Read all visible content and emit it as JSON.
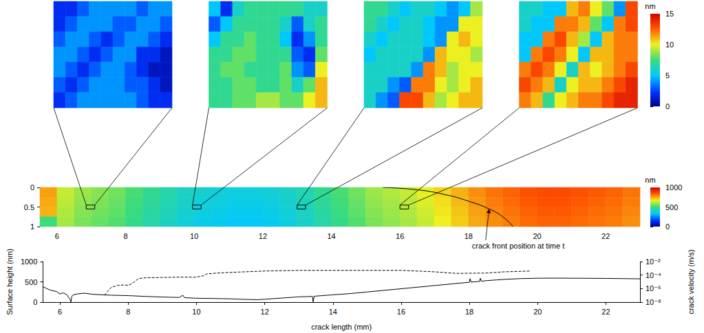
{
  "chart_data": [
    {
      "type": "heatmap",
      "tick_labels": false,
      "colorbar": {
        "label": "nm",
        "range": [
          0,
          15
        ],
        "ticks": [
          0,
          5,
          10,
          15
        ]
      },
      "insets": [
        {
          "xlim": [
            6.85,
            7.1
          ],
          "ylim": [
            0.45,
            0.55
          ],
          "cells": [
            [
              2,
              2,
              3,
              4,
              4,
              4,
              4,
              3,
              4,
              4
            ],
            [
              2,
              3,
              4,
              4,
              4,
              3,
              3,
              4,
              4,
              3
            ],
            [
              3,
              4,
              4,
              3,
              2,
              3,
              4,
              4,
              3,
              2
            ],
            [
              4,
              4,
              3,
              2,
              3,
              4,
              4,
              2,
              2,
              1
            ],
            [
              4,
              3,
              2,
              3,
              4,
              4,
              3,
              2,
              1,
              1
            ],
            [
              3,
              2,
              3,
              4,
              4,
              4,
              3,
              3,
              2,
              1
            ],
            [
              2,
              3,
              4,
              4,
              4,
              4,
              4,
              3,
              2,
              2
            ]
          ]
        },
        {
          "xlim": [
            9.95,
            10.2
          ],
          "ylim": [
            0.45,
            0.55
          ],
          "cells": [
            [
              5,
              2,
              6,
              7,
              7,
              7,
              7,
              7,
              6,
              6
            ],
            [
              3,
              5,
              7,
              7,
              7,
              7,
              6,
              3,
              6,
              7
            ],
            [
              5,
              7,
              7,
              8,
              7,
              7,
              5,
              2,
              4,
              7
            ],
            [
              7,
              7,
              8,
              8,
              7,
              7,
              7,
              3,
              2,
              8
            ],
            [
              7,
              8,
              8,
              7,
              7,
              7,
              8,
              4,
              3,
              10
            ],
            [
              7,
              7,
              8,
              8,
              7,
              7,
              8,
              6,
              8,
              11
            ],
            [
              7,
              7,
              8,
              8,
              9,
              9,
              8,
              8,
              10,
              11
            ]
          ]
        },
        {
          "xlim": [
            13.0,
            13.25
          ],
          "ylim": [
            0.45,
            0.55
          ],
          "cells": [
            [
              7,
              7,
              6,
              5,
              6,
              6,
              5,
              4,
              5,
              9
            ],
            [
              7,
              6,
              5,
              6,
              6,
              5,
              4,
              4,
              10,
              10
            ],
            [
              6,
              5,
              6,
              6,
              6,
              5,
              4,
              10,
              11,
              10
            ],
            [
              5,
              6,
              6,
              6,
              6,
              4,
              11,
              10,
              10,
              9
            ],
            [
              6,
              6,
              6,
              6,
              4,
              12,
              11,
              9,
              10,
              10
            ],
            [
              6,
              6,
              4,
              3,
              12,
              12,
              10,
              9,
              10,
              11
            ],
            [
              6,
              4,
              3,
              13,
              13,
              11,
              9,
              10,
              11,
              11
            ]
          ]
        },
        {
          "xlim": [
            16.0,
            16.25
          ],
          "ylim": [
            0.45,
            0.55
          ],
          "cells": [
            [
              6,
              6,
              5,
              5,
              11,
              12,
              10,
              8,
              4,
              13
            ],
            [
              6,
              5,
              5,
              12,
              12,
              11,
              8,
              5,
              12,
              13
            ],
            [
              5,
              5,
              12,
              13,
              11,
              9,
              5,
              11,
              12,
              12
            ],
            [
              5,
              12,
              13,
              12,
              10,
              5,
              11,
              11,
              12,
              12
            ],
            [
              12,
              13,
              12,
              10,
              6,
              11,
              10,
              11,
              12,
              13
            ],
            [
              13,
              12,
              11,
              6,
              10,
              11,
              11,
              12,
              13,
              14
            ],
            [
              12,
              11,
              7,
              10,
              11,
              12,
              12,
              13,
              14,
              14
            ]
          ]
        }
      ]
    },
    {
      "type": "heatmap",
      "grid": false,
      "xlim": [
        5.5,
        23
      ],
      "ylim": [
        0,
        1
      ],
      "xticks": [
        6,
        8,
        10,
        12,
        14,
        16,
        18,
        20,
        22
      ],
      "yticks": [
        0,
        0.5,
        1
      ],
      "colorbar": {
        "label": "nm",
        "range": [
          0,
          1000
        ],
        "ticks": [
          0,
          500,
          1000
        ]
      },
      "cells": [
        [
          760,
          630,
          590,
          570,
          550,
          510,
          470,
          440,
          410,
          390,
          380,
          370,
          370,
          380,
          400,
          430,
          470,
          510,
          550,
          590,
          610,
          630,
          660,
          700,
          740,
          780,
          810,
          830,
          850,
          860,
          860,
          850,
          840,
          830,
          810
        ],
        [
          750,
          620,
          580,
          560,
          540,
          500,
          460,
          430,
          400,
          380,
          370,
          360,
          360,
          370,
          390,
          420,
          460,
          500,
          540,
          580,
          600,
          620,
          650,
          690,
          730,
          770,
          800,
          820,
          840,
          850,
          850,
          840,
          830,
          820,
          800
        ],
        [
          740,
          610,
          570,
          550,
          530,
          490,
          450,
          420,
          390,
          370,
          360,
          350,
          350,
          360,
          380,
          410,
          450,
          490,
          530,
          570,
          590,
          610,
          640,
          680,
          720,
          760,
          790,
          810,
          830,
          840,
          840,
          830,
          820,
          810,
          790
        ],
        [
          500,
          600,
          560,
          540,
          520,
          480,
          440,
          410,
          380,
          360,
          350,
          340,
          340,
          350,
          370,
          400,
          440,
          480,
          520,
          560,
          580,
          600,
          630,
          670,
          710,
          750,
          780,
          800,
          820,
          830,
          830,
          820,
          810,
          800,
          780
        ]
      ],
      "crack_front": {
        "x": [
          15.5,
          16.5,
          17.3,
          18.0,
          18.6,
          19.0,
          19.3
        ],
        "y": [
          0,
          0.06,
          0.18,
          0.35,
          0.55,
          0.75,
          1.0
        ]
      },
      "annotation": {
        "text": "crack front position at time t",
        "x": 18.6,
        "y": 0.55
      }
    },
    {
      "type": "line",
      "grid": false,
      "log": "y2",
      "xlabel": "crack length (mm)",
      "ylabel": "Surface height (nm)",
      "y2label": "crack velocity (m/s)",
      "xlim": [
        5.5,
        23
      ],
      "xticks": [
        6,
        8,
        10,
        12,
        14,
        16,
        18,
        20,
        22
      ],
      "ylim": [
        0,
        1000
      ],
      "yticks": [
        0,
        500,
        1000
      ],
      "y2lim": [
        1e-08,
        0.01
      ],
      "y2ticks": [
        {
          "value": 1e-08,
          "label": "10⁻⁸"
        },
        {
          "value": 1e-06,
          "label": "10⁻⁶"
        },
        {
          "value": 0.0001,
          "label": "10⁻⁴"
        },
        {
          "value": 0.01,
          "label": "10⁻²"
        }
      ],
      "series": [
        {
          "color": "#000000",
          "line_style": "solid",
          "x": [
            5.5,
            5.7,
            5.9,
            6.0,
            6.1,
            6.2,
            6.3,
            6.32,
            6.35,
            6.4,
            6.5,
            6.7,
            7.0,
            7.5,
            8.0,
            8.5,
            9.0,
            9.5,
            9.6,
            9.65,
            10.0,
            10.5,
            11.0,
            11.5,
            11.8,
            12.0,
            12.5,
            13.0,
            13.4,
            13.42,
            13.45,
            14.0,
            14.5,
            15.0,
            15.5,
            16.0,
            16.5,
            17.0,
            17.5,
            18.0,
            18.02,
            18.05,
            18.3,
            18.32,
            18.35,
            18.5,
            19.0,
            19.5,
            20.0,
            20.5,
            21.0,
            21.5,
            22.0,
            22.5,
            23.0
          ],
          "values": [
            380,
            300,
            260,
            200,
            230,
            180,
            60,
            0,
            150,
            180,
            200,
            220,
            190,
            170,
            160,
            140,
            125,
            115,
            170,
            110,
            95,
            90,
            80,
            65,
            60,
            70,
            100,
            130,
            140,
            5,
            145,
            180,
            210,
            250,
            290,
            330,
            370,
            410,
            450,
            490,
            580,
            495,
            510,
            590,
            515,
            530,
            560,
            580,
            590,
            592,
            590,
            588,
            585,
            580,
            575
          ]
        },
        {
          "color": "#000000",
          "line_style": "dashed",
          "axis": "y2",
          "x": [
            7.3,
            7.4,
            7.5,
            7.7,
            7.9,
            8.0,
            8.1,
            8.2,
            8.3,
            8.5,
            9.0,
            9.5,
            10.0,
            10.2,
            10.3,
            10.6,
            11.0,
            12.0,
            13.0,
            14.0,
            15.0,
            16.0,
            17.0,
            17.6,
            18.5,
            19.0,
            19.8
          ],
          "values": [
            1e-07,
            4e-07,
            1.5e-06,
            3e-06,
            3.5e-06,
            3e-06,
            5e-06,
            1.2e-05,
            3e-05,
            4e-05,
            4.5e-05,
            5e-05,
            5e-05,
            8e-05,
            0.00015,
            0.0002,
            0.00025,
            0.0004,
            0.0005,
            0.0005,
            0.0005,
            0.0005,
            0.0003,
            0.00018,
            0.0002,
            0.0003,
            0.0004
          ]
        }
      ]
    }
  ]
}
